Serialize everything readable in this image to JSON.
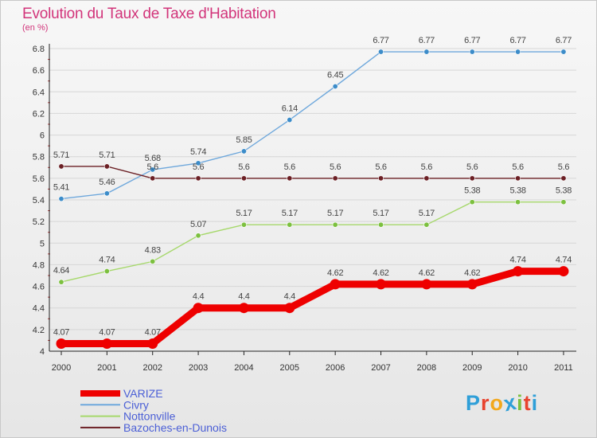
{
  "title": "Evolution du Taux de Taxe d'Habitation",
  "unit_label": "(en %)",
  "logo_text": "Proxiti",
  "logo_colors": [
    "#2f9fd8",
    "#e8432e",
    "#f2a81d",
    "#2f9fd8",
    "#7cc03f",
    "#e8432e",
    "#2f9fd8"
  ],
  "chart_data": {
    "type": "line",
    "title": "Evolution du Taux de Taxe d'Habitation",
    "ylabel": "(en %)",
    "xlabel": "",
    "x": [
      "2000",
      "2001",
      "2002",
      "2003",
      "2004",
      "2005",
      "2006",
      "2007",
      "2008",
      "2009",
      "2010",
      "2011"
    ],
    "ylim": [
      4,
      6.8
    ],
    "yticks": [
      "4",
      "4.2",
      "4.4",
      "4.6",
      "4.8",
      "5",
      "5.2",
      "5.4",
      "5.6",
      "5.8",
      "6",
      "6.2",
      "6.4",
      "6.6",
      "6.8"
    ],
    "grid": "horizontal",
    "legend_position": "bottom",
    "series": [
      {
        "name": "VARIZE",
        "color": "#ee0000",
        "emphasis": true,
        "values": [
          4.07,
          4.07,
          4.07,
          4.4,
          4.4,
          4.4,
          4.62,
          4.62,
          4.62,
          4.62,
          4.74,
          4.74
        ],
        "labels": [
          "4.07",
          "4.07",
          "4.07",
          "4.4",
          "4.4",
          "4.4",
          "4.62",
          "4.62",
          "4.62",
          "4.62",
          "4.74",
          "4.74"
        ]
      },
      {
        "name": "Civry",
        "color": "#6fa8dc",
        "marker_color": "#3c8cc9",
        "values": [
          5.41,
          5.46,
          5.68,
          5.74,
          5.85,
          6.14,
          6.45,
          6.77,
          6.77,
          6.77,
          6.77,
          6.77
        ],
        "labels": [
          "5.41",
          "5.46",
          "5.68",
          "5.74",
          "5.85",
          "6.14",
          "6.45",
          "6.77",
          "6.77",
          "6.77",
          "6.77",
          "6.77"
        ]
      },
      {
        "name": "Nottonville",
        "color": "#a6d86b",
        "marker_color": "#7cc03f",
        "values": [
          4.64,
          4.74,
          4.83,
          5.07,
          5.17,
          5.17,
          5.17,
          5.17,
          5.17,
          5.38,
          5.38,
          5.38
        ],
        "labels": [
          "4.64",
          "4.74",
          "4.83",
          "5.07",
          "5.17",
          "5.17",
          "5.17",
          "5.17",
          "5.17",
          "5.38",
          "5.38",
          "5.38"
        ]
      },
      {
        "name": "Bazoches-en-Dunois",
        "color": "#6b1f24",
        "marker_color": "#6b1f24",
        "values": [
          5.71,
          5.71,
          5.6,
          5.6,
          5.6,
          5.6,
          5.6,
          5.6,
          5.6,
          5.6,
          5.6,
          5.6
        ],
        "labels": [
          "5.71",
          "5.71",
          "5.6",
          "5.6",
          "5.6",
          "5.6",
          "5.6",
          "5.6",
          "5.6",
          "5.6",
          "5.6",
          "5.6"
        ]
      }
    ]
  }
}
